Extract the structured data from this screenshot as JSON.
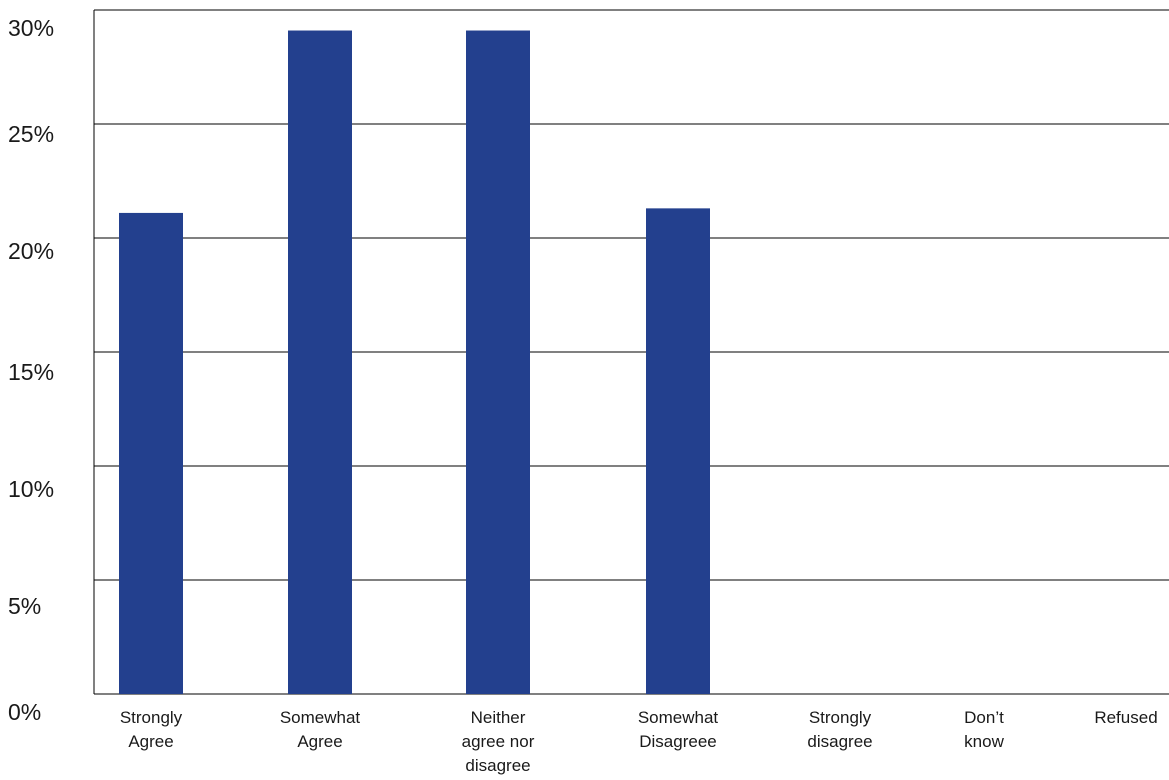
{
  "chart_data": {
    "type": "bar",
    "categories": [
      [
        "Strongly",
        "Agree"
      ],
      [
        "Somewhat",
        "Agree"
      ],
      [
        "Neither",
        "agree nor",
        "disagree"
      ],
      [
        "Somewhat",
        "Disagreee"
      ],
      [
        "Strongly",
        "disagree"
      ],
      [
        "Don’t",
        "know"
      ],
      [
        "Refused"
      ]
    ],
    "values": [
      21.1,
      29.1,
      29.1,
      21.3,
      0,
      0,
      0
    ],
    "ylim": [
      0,
      30
    ],
    "yticks": [
      0,
      5,
      10,
      15,
      20,
      25,
      30
    ],
    "ytick_labels": [
      "0%",
      "5%",
      "10%",
      "15%",
      "20%",
      "25%",
      "30%"
    ],
    "grid": true,
    "colors": {
      "bar": "#23408e",
      "grid": "#000000",
      "axis": "#000000"
    }
  }
}
